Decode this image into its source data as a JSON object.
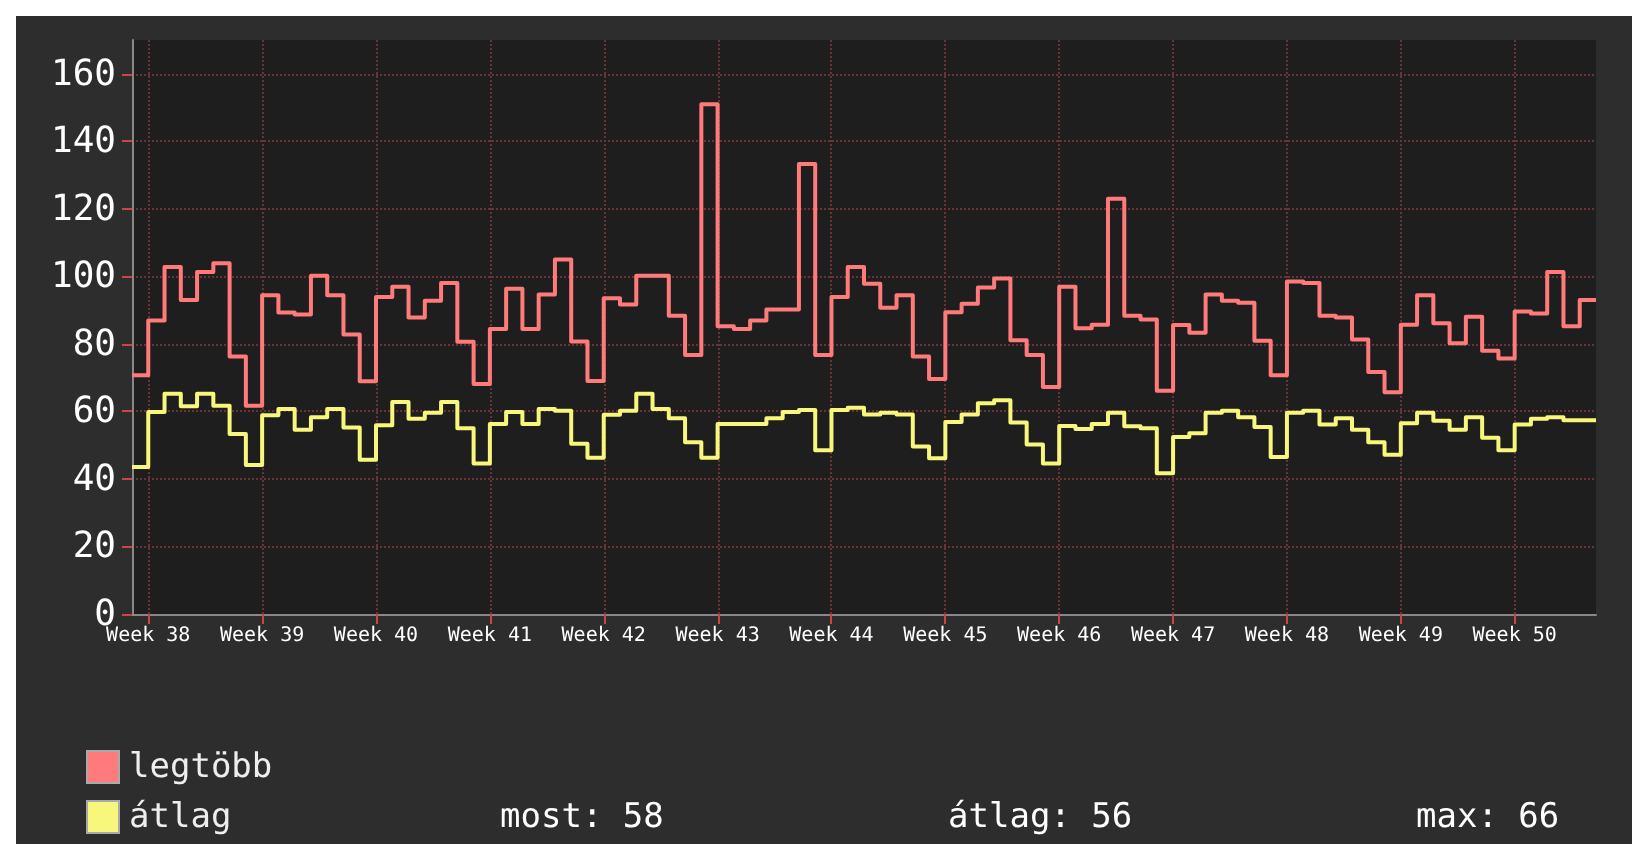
{
  "chart_data": {
    "type": "step",
    "categories": [
      null,
      "Week 38",
      null,
      null,
      null,
      null,
      null,
      null,
      "Week 39",
      null,
      null,
      null,
      null,
      null,
      null,
      "Week 40",
      null,
      null,
      null,
      null,
      null,
      null,
      "Week 41",
      null,
      null,
      null,
      null,
      null,
      null,
      "Week 42",
      null,
      null,
      null,
      null,
      null,
      null,
      "Week 43",
      null,
      null,
      null,
      null,
      null,
      null,
      "Week 44",
      null,
      null,
      null,
      null,
      null,
      null,
      "Week 45",
      null,
      null,
      null,
      null,
      null,
      null,
      "Week 46",
      null,
      null,
      null,
      null,
      null,
      null,
      "Week 47",
      null,
      null,
      null,
      null,
      null,
      null,
      "Week 48",
      null,
      null,
      null,
      null,
      null,
      null,
      "Week 49",
      null,
      null,
      null,
      null,
      null,
      null,
      "Week 50",
      null,
      null,
      null,
      null,
      null
    ],
    "series": [
      {
        "name": "legtöbb",
        "color": "#ff7b7b",
        "values": [
          70.7,
          86.9,
          102.8,
          93,
          101.3,
          103.9,
          76.3,
          61.7,
          94.4,
          89.3,
          88.7,
          100.2,
          94.4,
          82.8,
          68.9,
          93.9,
          96.9,
          87.8,
          92.8,
          98,
          80.6,
          68.1,
          84.4,
          96.3,
          84.4,
          94.6,
          105,
          80.7,
          69,
          93.5,
          91.7,
          100.2,
          100.2,
          88.3,
          76.7,
          151,
          85.2,
          84.4,
          86.9,
          90.2,
          90.2,
          133.3,
          76.7,
          93.9,
          102.8,
          97.8,
          90.7,
          94.4,
          76.3,
          69.6,
          89.4,
          91.9,
          96.7,
          99.4,
          81.1,
          76.7,
          67.2,
          96.9,
          84.6,
          85.7,
          123,
          88.3,
          87.2,
          66.1,
          85.6,
          83.3,
          94.6,
          92.8,
          92.2,
          80.9,
          70.7,
          98.5,
          98,
          88.3,
          87.8,
          81.3,
          71.7,
          65.7,
          85.7,
          94.4,
          86.1,
          80.2,
          88,
          78,
          75.7,
          89.6,
          89,
          101.3,
          85.2,
          93,
          93
        ]
      },
      {
        "name": "átlag",
        "color": "#f7f77b",
        "values": [
          43.5,
          59.8,
          65.2,
          61.5,
          65.2,
          61.7,
          53.3,
          44.1,
          58.9,
          60.7,
          54.6,
          58.3,
          60.7,
          55.2,
          45.7,
          55.9,
          62.8,
          57.8,
          59.6,
          62.8,
          55,
          44.6,
          56.3,
          59.8,
          56.3,
          60.7,
          60.2,
          50.4,
          46.3,
          59,
          60.2,
          65.2,
          60.7,
          58,
          50.9,
          46.3,
          56.3,
          56.3,
          56.3,
          58,
          59.8,
          60.4,
          48.5,
          60.4,
          61.1,
          59.1,
          59.6,
          59.1,
          49.6,
          46.1,
          56.9,
          59.1,
          62.4,
          63.3,
          56.7,
          50.2,
          44.6,
          55.7,
          54.8,
          56.3,
          59.6,
          55.6,
          55,
          41.7,
          52.4,
          53.5,
          59.6,
          60.2,
          58.3,
          55.4,
          46.5,
          59.6,
          60.2,
          56.1,
          58,
          54.6,
          50.9,
          47.2,
          56.5,
          59.6,
          57.2,
          54.6,
          58.3,
          52.2,
          48.5,
          56.1,
          57.8,
          58.3,
          57.4,
          57.4,
          57.4
        ]
      }
    ],
    "ylim": [
      0,
      170
    ],
    "yticks": [
      0,
      20,
      40,
      60,
      80,
      100,
      120,
      140,
      160
    ],
    "grid": true,
    "legend": "bottom left",
    "annotations": [
      "most: 58",
      "átlag: 56",
      "max: 66"
    ]
  }
}
